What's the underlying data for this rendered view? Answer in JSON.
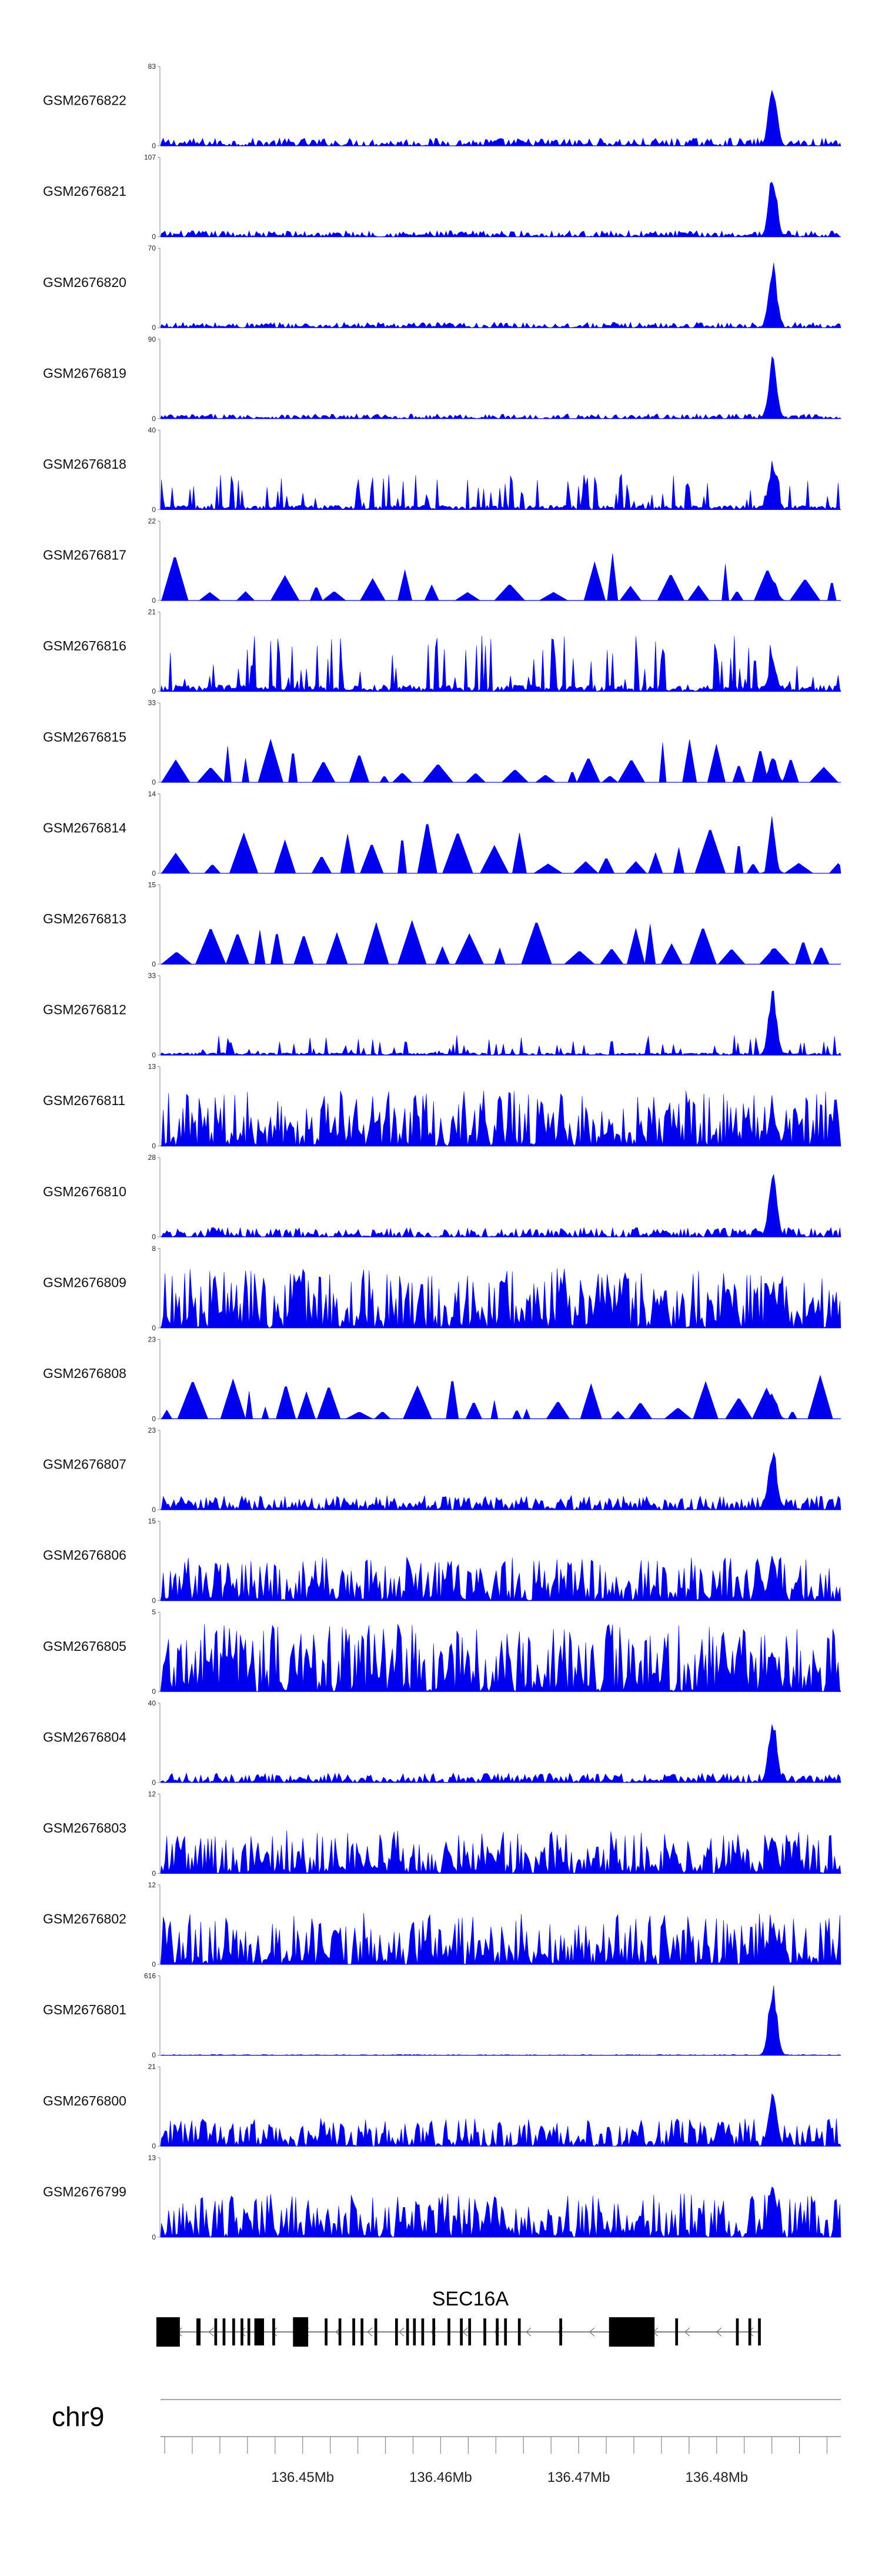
{
  "chart_data": {
    "type": "area",
    "title": "",
    "series_color": "#0000ee",
    "gene_color": "#000000",
    "axis_color": "#888888",
    "tracks": [
      {
        "name": "GSM2676822",
        "ymax": "83",
        "ymin": "0",
        "max": 83,
        "peak": 0.82,
        "noise": 0.1,
        "style": "dense"
      },
      {
        "name": "GSM2676821",
        "ymax": "107",
        "ymin": "0",
        "max": 107,
        "peak": 0.85,
        "noise": 0.08,
        "style": "dense"
      },
      {
        "name": "GSM2676820",
        "ymax": "70",
        "ymin": "0",
        "max": 70,
        "peak": 0.85,
        "noise": 0.07,
        "style": "dense"
      },
      {
        "name": "GSM2676819",
        "ymax": "90",
        "ymin": "0",
        "max": 90,
        "peak": 0.8,
        "noise": 0.06,
        "style": "dense"
      },
      {
        "name": "GSM2676818",
        "ymax": "40",
        "ymin": "0",
        "max": 40,
        "peak": 0.65,
        "noise": 0.45,
        "style": "sparse"
      },
      {
        "name": "GSM2676817",
        "ymax": "22",
        "ymin": "0",
        "max": 22,
        "peak": 0.3,
        "noise": 0.6,
        "style": "triangles"
      },
      {
        "name": "GSM2676816",
        "ymax": "21",
        "ymin": "0",
        "max": 21,
        "peak": 0.4,
        "noise": 0.7,
        "style": "sparse"
      },
      {
        "name": "GSM2676815",
        "ymax": "33",
        "ymin": "0",
        "max": 33,
        "peak": 0.35,
        "noise": 0.55,
        "style": "triangles"
      },
      {
        "name": "GSM2676814",
        "ymax": "14",
        "ymin": "0",
        "max": 14,
        "peak": 0.2,
        "noise": 0.75,
        "style": "triangles"
      },
      {
        "name": "GSM2676813",
        "ymax": "15",
        "ymin": "0",
        "max": 15,
        "peak": 0.2,
        "noise": 0.75,
        "style": "triangles"
      },
      {
        "name": "GSM2676812",
        "ymax": "33",
        "ymin": "0",
        "max": 33,
        "peak": 0.85,
        "noise": 0.25,
        "style": "sparse"
      },
      {
        "name": "GSM2676811",
        "ymax": "13",
        "ymin": "0",
        "max": 13,
        "peak": 0.45,
        "noise": 0.7,
        "style": "dense"
      },
      {
        "name": "GSM2676810",
        "ymax": "28",
        "ymin": "0",
        "max": 28,
        "peak": 0.85,
        "noise": 0.12,
        "style": "dense"
      },
      {
        "name": "GSM2676809",
        "ymax": "8",
        "ymin": "0",
        "max": 8,
        "peak": 0.55,
        "noise": 0.75,
        "style": "dense"
      },
      {
        "name": "GSM2676808",
        "ymax": "23",
        "ymin": "0",
        "max": 23,
        "peak": 0.35,
        "noise": 0.55,
        "style": "triangles"
      },
      {
        "name": "GSM2676807",
        "ymax": "23",
        "ymin": "0",
        "max": 23,
        "peak": 0.85,
        "noise": 0.18,
        "style": "dense"
      },
      {
        "name": "GSM2676806",
        "ymax": "15",
        "ymin": "0",
        "max": 15,
        "peak": 0.6,
        "noise": 0.55,
        "style": "dense"
      },
      {
        "name": "GSM2676805",
        "ymax": "5",
        "ymin": "0",
        "max": 5,
        "peak": 0.55,
        "noise": 0.85,
        "style": "dense"
      },
      {
        "name": "GSM2676804",
        "ymax": "40",
        "ymin": "0",
        "max": 40,
        "peak": 0.85,
        "noise": 0.12,
        "style": "dense"
      },
      {
        "name": "GSM2676803",
        "ymax": "12",
        "ymin": "0",
        "max": 12,
        "peak": 0.55,
        "noise": 0.55,
        "style": "dense"
      },
      {
        "name": "GSM2676802",
        "ymax": "12",
        "ymin": "0",
        "max": 12,
        "peak": 0.55,
        "noise": 0.65,
        "style": "dense"
      },
      {
        "name": "GSM2676801",
        "ymax": "616",
        "ymin": "0",
        "max": 616,
        "peak": 0.95,
        "noise": 0.01,
        "style": "dense"
      },
      {
        "name": "GSM2676800",
        "ymax": "21",
        "ymin": "0",
        "max": 21,
        "peak": 0.7,
        "noise": 0.35,
        "style": "dense"
      },
      {
        "name": "GSM2676799",
        "ymax": "13",
        "ymin": "0",
        "max": 13,
        "peak": 0.7,
        "noise": 0.55,
        "style": "dense"
      }
    ],
    "gene": {
      "name": "SEC16A",
      "strand": "-",
      "start_mb": 136.4394,
      "end_mb": 136.4832,
      "exons_mb": [
        [
          136.4394,
          136.4411
        ],
        [
          136.4423,
          136.4426
        ],
        [
          136.4436,
          136.4438
        ],
        [
          136.4442,
          136.4444
        ],
        [
          136.4449,
          136.4451
        ],
        [
          136.4455,
          136.4457
        ],
        [
          136.446,
          136.4462
        ],
        [
          136.4465,
          136.4472
        ],
        [
          136.4478,
          136.448
        ],
        [
          136.4493,
          136.4504
        ],
        [
          136.4516,
          136.4518
        ],
        [
          136.4526,
          136.4528
        ],
        [
          136.4536,
          136.4538
        ],
        [
          136.4542,
          136.4544
        ],
        [
          136.4552,
          136.4554
        ],
        [
          136.4567,
          136.4569
        ],
        [
          136.4575,
          136.4577
        ],
        [
          136.458,
          136.4582
        ],
        [
          136.4586,
          136.4588
        ],
        [
          136.4594,
          136.4596
        ],
        [
          136.4605,
          136.4607
        ],
        [
          136.4614,
          136.4616
        ],
        [
          136.462,
          136.4622
        ],
        [
          136.4631,
          136.4633
        ],
        [
          136.464,
          136.4642
        ],
        [
          136.4646,
          136.4648
        ],
        [
          136.4656,
          136.4658
        ],
        [
          136.4686,
          136.4688
        ],
        [
          136.4722,
          136.4755
        ],
        [
          136.477,
          136.4772
        ],
        [
          136.4814,
          136.4816
        ],
        [
          136.4823,
          136.4825
        ],
        [
          136.483,
          136.4832
        ]
      ]
    },
    "x_axis": {
      "chromosome": "chr9",
      "range_mb": [
        136.4397,
        136.489
      ],
      "labels": [
        "136.45Mb",
        "136.46Mb",
        "136.47Mb",
        "136.48Mb"
      ],
      "label_values_mb": [
        136.45,
        136.46,
        136.47,
        136.48
      ],
      "minor_tick_step_mb": 0.002
    },
    "peak_center_mb": 136.484
  }
}
